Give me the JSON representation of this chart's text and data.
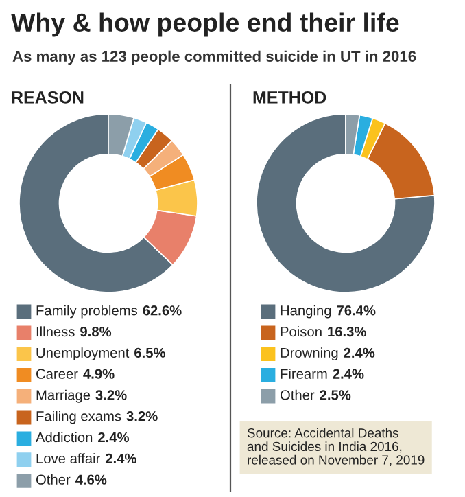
{
  "chart_data": [
    {
      "type": "donut",
      "title": "REASON",
      "annotations": [
        "Why & how people end their life",
        "As many as 123 people committed suicide in UT in 2016"
      ],
      "categories": [
        "Family problems",
        "Illness",
        "Unemployment",
        "Career",
        "Marriage",
        "Failing exams",
        "Addiction",
        "Love affair",
        "Other"
      ],
      "values": [
        62.6,
        9.8,
        6.5,
        4.9,
        3.2,
        3.2,
        2.4,
        2.4,
        4.6
      ],
      "colors": [
        "#5a6e7c",
        "#e8806a",
        "#fbc54a",
        "#f08c22",
        "#f5b07a",
        "#c8641e",
        "#2aaee0",
        "#8fd0ef",
        "#8c9ea9"
      ],
      "value_labels": [
        "62.6%",
        "9.8%",
        "6.5%",
        "4.9%",
        "3.2%",
        "3.2%",
        "2.4%",
        "2.4%",
        "4.6%"
      ],
      "legend": "bottom"
    },
    {
      "type": "donut",
      "title": "METHOD",
      "annotations": [
        "Source: Accidental Deaths\nand Suicides in India 2016,\nreleased on November 7, 2019"
      ],
      "categories": [
        "Hanging",
        "Poison",
        "Drowning",
        "Firearm",
        "Other"
      ],
      "values": [
        76.4,
        16.3,
        2.4,
        2.4,
        2.5
      ],
      "colors": [
        "#5a6e7c",
        "#c8641e",
        "#fbc21e",
        "#2aaee0",
        "#8c9ea9"
      ],
      "value_labels": [
        "76.4%",
        "16.3%",
        "2.4%",
        "2.4%",
        "2.5%"
      ],
      "legend": "bottom"
    }
  ]
}
